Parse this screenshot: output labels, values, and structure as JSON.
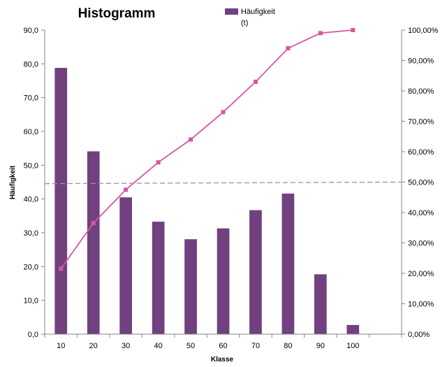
{
  "chart_data": {
    "type": "bar",
    "title": "Histogramm",
    "xlabel": "Klasse",
    "ylabel": "Häufigkeit",
    "categories": [
      "10",
      "20",
      "30",
      "40",
      "50",
      "60",
      "70",
      "80",
      "90",
      "100"
    ],
    "x_extra_slot": true,
    "ylim": [
      0,
      90
    ],
    "y_ticks": [
      "0,0",
      "10,0",
      "20,0",
      "30,0",
      "40,0",
      "50,0",
      "60,0",
      "70,0",
      "80,0",
      "90,0"
    ],
    "y2lim": [
      0,
      100
    ],
    "y2_ticks": [
      "0,00%",
      "10,00%",
      "20,00%",
      "30,00%",
      "40,00%",
      "50,00%",
      "60,00%",
      "70,00%",
      "80,00%",
      "90,00%",
      "100,00%"
    ],
    "series": [
      {
        "name": "Häufigkeit",
        "type": "bar",
        "axis": "left",
        "color": "#71407f",
        "values": [
          78.8,
          54.1,
          40.5,
          33.3,
          28.1,
          31.3,
          36.7,
          41.6,
          17.7,
          2.7
        ]
      },
      {
        "name": "(t)",
        "type": "line",
        "axis": "right",
        "color": "#d9559f",
        "values": [
          21.5,
          36.5,
          47.5,
          56.5,
          64.0,
          73.0,
          83.0,
          94.0,
          99.0,
          100.0
        ]
      }
    ],
    "reference_line": {
      "axis": "right",
      "start": 49.5,
      "end": 50.0,
      "style": "dashed",
      "color": "#a886bb"
    },
    "legend": {
      "position": "top-center",
      "entries": [
        "Häufigkeit",
        "(t)"
      ]
    },
    "grid": false
  }
}
